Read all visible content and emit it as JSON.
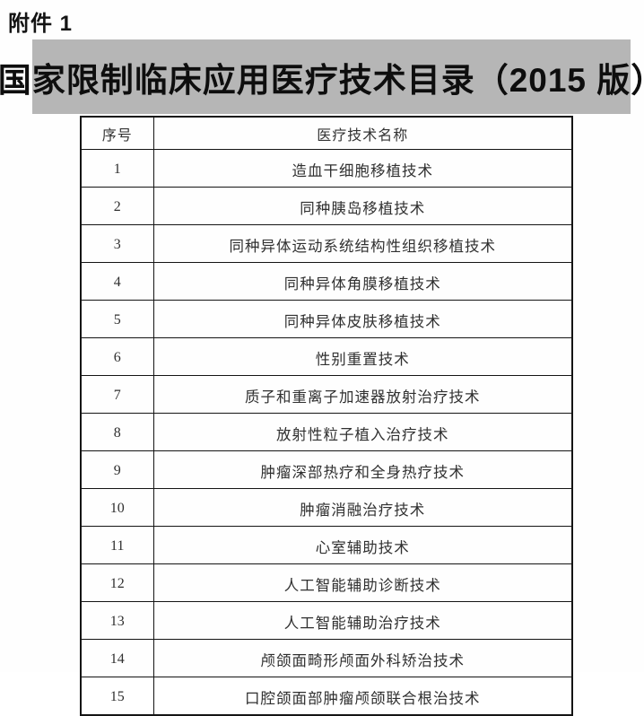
{
  "page": {
    "attachment_label": "附件 1",
    "title": "国家限制临床应用医疗技术目录（2015 版）"
  },
  "colors": {
    "banner_background": "#b6b6b6",
    "border": "#141414",
    "text": "#303030",
    "page_background": "#fefefe"
  },
  "table": {
    "headers": [
      "序号",
      "医疗技术名称"
    ],
    "rows": [
      {
        "no": "1",
        "name": "造血干细胞移植技术"
      },
      {
        "no": "2",
        "name": "同种胰岛移植技术"
      },
      {
        "no": "3",
        "name": "同种异体运动系统结构性组织移植技术"
      },
      {
        "no": "4",
        "name": "同种异体角膜移植技术"
      },
      {
        "no": "5",
        "name": "同种异体皮肤移植技术"
      },
      {
        "no": "6",
        "name": "性别重置技术"
      },
      {
        "no": "7",
        "name": "质子和重离子加速器放射治疗技术"
      },
      {
        "no": "8",
        "name": "放射性粒子植入治疗技术"
      },
      {
        "no": "9",
        "name": "肿瘤深部热疗和全身热疗技术"
      },
      {
        "no": "10",
        "name": "肿瘤消融治疗技术"
      },
      {
        "no": "11",
        "name": "心室辅助技术"
      },
      {
        "no": "12",
        "name": "人工智能辅助诊断技术"
      },
      {
        "no": "13",
        "name": "人工智能辅助治疗技术"
      },
      {
        "no": "14",
        "name": "颅颌面畸形颅面外科矫治技术"
      },
      {
        "no": "15",
        "name": "口腔颌面部肿瘤颅颌联合根治技术"
      }
    ]
  }
}
